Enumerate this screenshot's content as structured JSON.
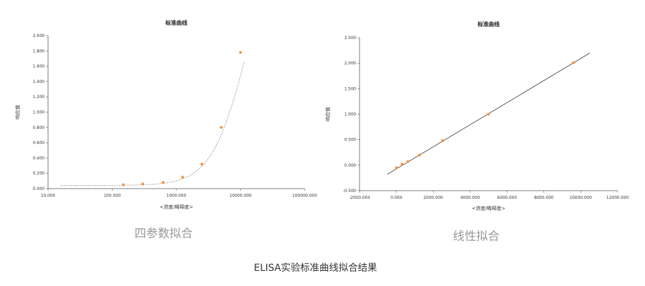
{
  "chart_data": [
    {
      "type": "scatter",
      "title": "标准曲线",
      "xlabel": "<浓度/稀释度>",
      "ylabel": "响应值",
      "x_scale": "log",
      "xlim": [
        10,
        100000
      ],
      "ylim": [
        0,
        2
      ],
      "x_ticks": [
        "10.000",
        "100.000",
        "1000.000",
        "10000.000",
        "100000.000"
      ],
      "y_ticks": [
        "0.000",
        "0.200",
        "0.400",
        "0.600",
        "0.800",
        "1.000",
        "1.200",
        "1.400",
        "1.600",
        "1.800",
        "2.000"
      ],
      "series": [
        {
          "x": [
            150,
            300,
            620,
            1250,
            2500,
            5000,
            10000
          ],
          "y": [
            0.05,
            0.06,
            0.08,
            0.15,
            0.32,
            0.8,
            1.78
          ]
        }
      ],
      "fit": "4PL",
      "fit_color": "#999999",
      "marker_color": "#f5923e",
      "caption": "四参数拟合"
    },
    {
      "type": "scatter",
      "title": "标准曲线",
      "xlabel": "<浓度/稀释度>",
      "ylabel": "响应值",
      "xlim": [
        -2000,
        12000
      ],
      "ylim": [
        -0.5,
        2.5
      ],
      "x_ticks": [
        "-2000.000",
        "0.000",
        "2000.000",
        "4000.000",
        "6000.000",
        "8000.000",
        "10000.000",
        "12000.000"
      ],
      "y_ticks": [
        "-0.500",
        "0.000",
        "0.500",
        "1.000",
        "1.500",
        "2.000",
        "2.500"
      ],
      "series": [
        {
          "x": [
            0,
            300,
            620,
            1250,
            2500,
            5000,
            9600
          ],
          "y": [
            -0.05,
            0.02,
            0.07,
            0.2,
            0.48,
            1.0,
            2.01
          ]
        }
      ],
      "fit": "linear",
      "fit_line": {
        "x": [
          -500,
          10500
        ],
        "y": [
          -0.18,
          2.2
        ]
      },
      "fit_color": "#444444",
      "marker_color": "#f5923e",
      "caption": "线性拟合"
    }
  ],
  "footer": "ELISA实验标准曲线拟合结果"
}
